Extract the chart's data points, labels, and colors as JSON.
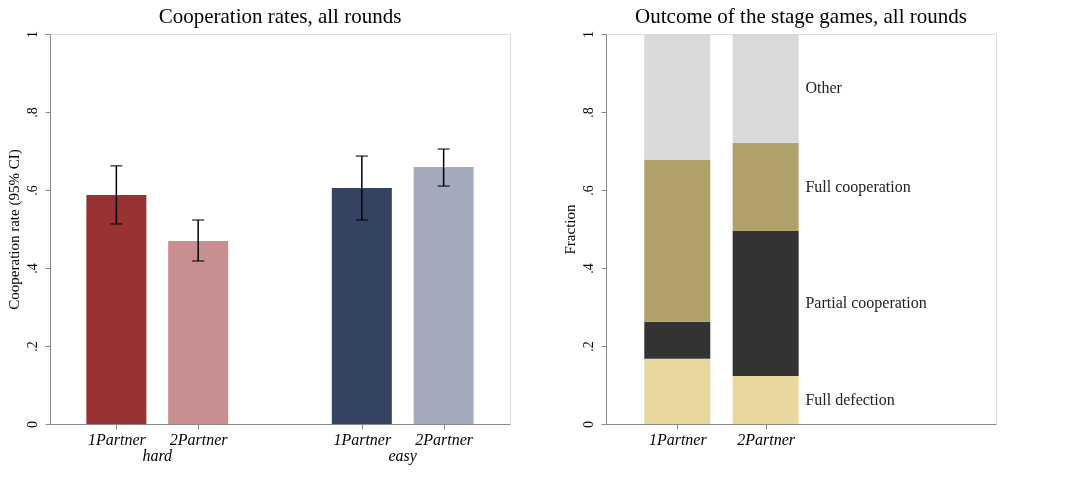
{
  "chart_data": [
    {
      "type": "bar",
      "title": "Cooperation rates, all rounds",
      "ylabel": "Cooperation rate (95% CI)",
      "categories": [
        "1Partner",
        "2Partner",
        null,
        "1Partner",
        "2Partner"
      ],
      "values": [
        0.587,
        0.469,
        null,
        0.605,
        0.659
      ],
      "colors": [
        "#993333",
        "#c78f8f",
        "#ffffff",
        "#344361",
        "#a3aabb"
      ],
      "errors": [
        [
          0.513,
          0.662
        ],
        [
          0.418,
          0.523
        ],
        null,
        [
          0.523,
          0.687
        ],
        [
          0.61,
          0.705
        ]
      ],
      "annotations": [
        "hard",
        "easy"
      ],
      "ylim": [
        0,
        1
      ],
      "yticks": [
        0,
        {
          "value": 0.2,
          "label": ".2"
        },
        {
          "value": 0.4,
          "label": ".4"
        },
        {
          "value": 0.6,
          "label": ".6"
        },
        {
          "value": 0.8,
          "label": ".8"
        },
        1
      ]
    },
    {
      "type": "bar",
      "title": "Outcome of the stage games, all rounds",
      "ylabel": "Fraction",
      "stacked": true,
      "categories": [
        "1Partner",
        "2Partner"
      ],
      "series": [
        {
          "name": "Full defection",
          "color": "#e8d89e",
          "values": [
            0.167,
            0.123
          ]
        },
        {
          "name": "Partial cooperation",
          "color": "#333333",
          "values": [
            0.095,
            0.372
          ]
        },
        {
          "name": "Full cooperation",
          "color": "#b0a06c",
          "values": [
            0.415,
            0.226
          ]
        },
        {
          "name": "Other",
          "color": "#d9d9d9",
          "values": [
            0.323,
            0.279
          ]
        }
      ],
      "ylim": [
        0,
        1
      ],
      "yticks": [
        0,
        {
          "value": 0.2,
          "label": ".2"
        },
        {
          "value": 0.4,
          "label": ".4"
        },
        {
          "value": 0.6,
          "label": ".6"
        },
        {
          "value": 0.8,
          "label": ".8"
        },
        1
      ]
    }
  ]
}
